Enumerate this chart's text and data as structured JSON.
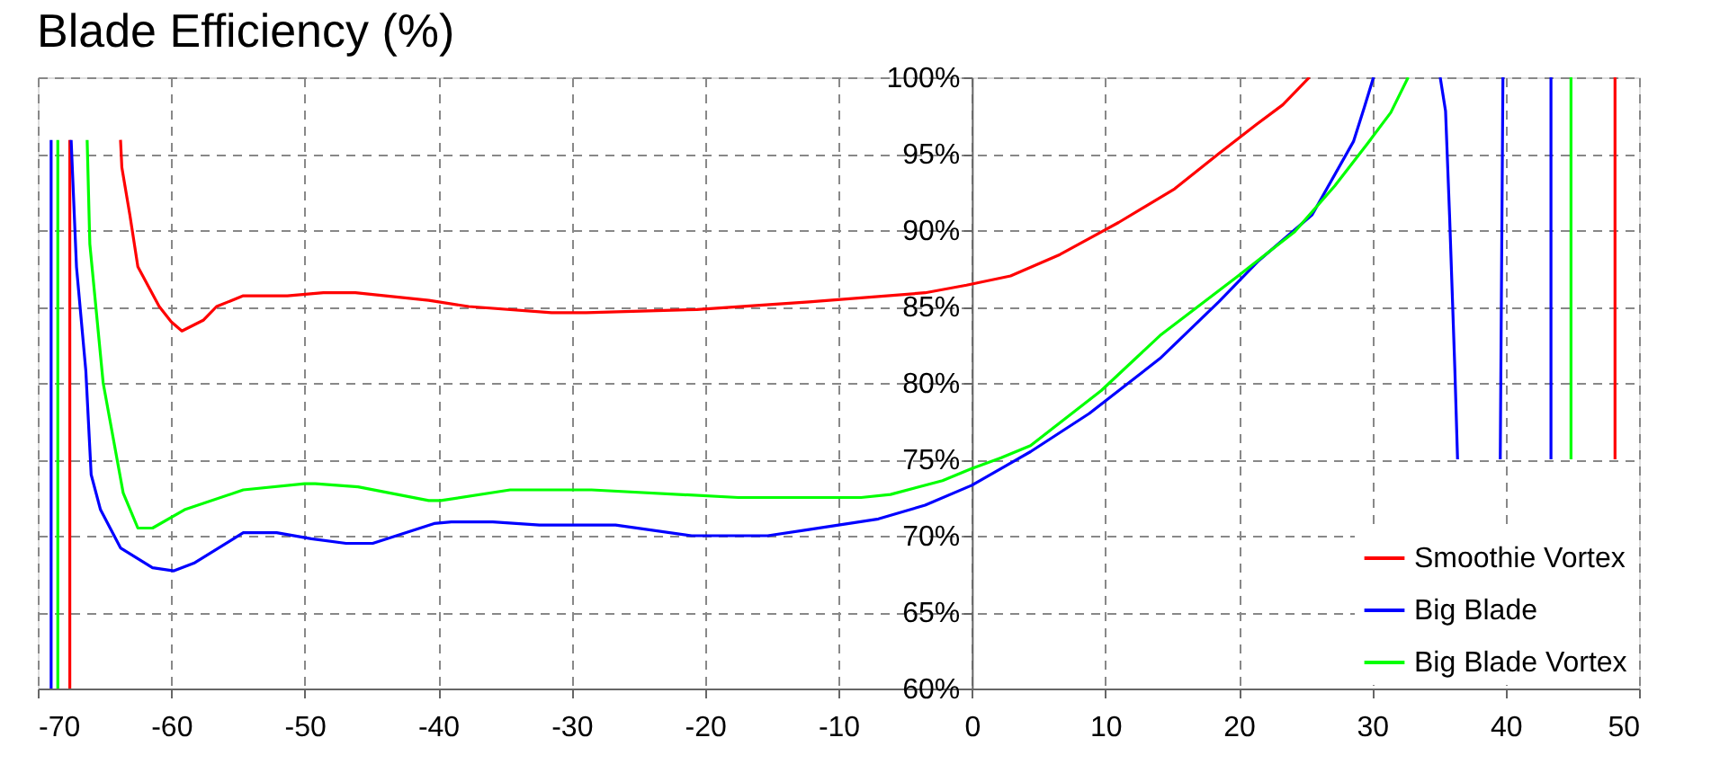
{
  "chart_data": {
    "type": "line",
    "title": "Blade Efficiency (%)",
    "xlim": [
      -70,
      50
    ],
    "xticks": [
      -70,
      -60,
      -50,
      -40,
      -30,
      -20,
      -10,
      0,
      10,
      20,
      30,
      40,
      50
    ],
    "ylim": [
      60,
      100
    ],
    "yticks": [
      {
        "value": 60,
        "label": "60%"
      },
      {
        "value": 65,
        "label": "65%"
      },
      {
        "value": 70,
        "label": "70%"
      },
      {
        "value": 75,
        "label": "75%"
      },
      {
        "value": 80,
        "label": "80%"
      },
      {
        "value": 85,
        "label": "85%"
      },
      {
        "value": 90,
        "label": "90%"
      },
      {
        "value": 95,
        "label": "95%"
      },
      {
        "value": 100,
        "label": "100%"
      }
    ],
    "grid": true,
    "legend": "bottom right",
    "line_style": "solid",
    "marker": "none",
    "series": [
      {
        "name": "Smoothie Vortex",
        "color": "#ff0000",
        "x": [
          -67.6,
          -67.6,
          -65,
          -63.8,
          -63.7,
          -63.1,
          -62.5,
          -60.9,
          -60.0,
          -59.2,
          -57.6,
          -56.6,
          -54.6,
          -51.3,
          -48.6,
          -46.2,
          -40.7,
          -37.7,
          -31.5,
          -28.9,
          -20.6,
          -12.2,
          -3.5,
          -0.4,
          2.9,
          6.6,
          11.0,
          15.2,
          18.5,
          21.3,
          23.3,
          25.3,
          40,
          48.2,
          48.2
        ],
        "values": [
          60,
          95.9,
          null,
          95.9,
          94.1,
          91.0,
          87.6,
          85.0,
          84.0,
          83.4,
          84.1,
          85.0,
          85.7,
          85.7,
          85.9,
          85.9,
          85.4,
          85.0,
          84.6,
          84.6,
          84.8,
          85.3,
          85.9,
          86.4,
          87.0,
          88.4,
          90.5,
          92.7,
          95.0,
          96.9,
          98.2,
          100,
          null,
          100,
          75
        ]
      },
      {
        "name": "Big Blade",
        "color": "#0000ff",
        "x": [
          -69.0,
          -69.0,
          -68,
          -67.5,
          -67.1,
          -66.4,
          -66.0,
          -65.3,
          -63.8,
          -61.4,
          -59.8,
          -58.3,
          -54.6,
          -52.1,
          -49.5,
          -46.9,
          -44.9,
          -40.3,
          -39.0,
          -35.9,
          -32.4,
          -26.7,
          -21.0,
          -15.3,
          -12.2,
          -7.0,
          -3.5,
          0,
          4.4,
          8.8,
          14.1,
          18.5,
          21.5,
          25.5,
          28.6,
          29.4,
          30.1,
          33,
          35.1,
          35.5,
          35.8,
          36.2,
          36.4,
          38,
          39.8,
          39.6,
          41,
          43.4,
          43.4
        ],
        "values": [
          60,
          95.9,
          null,
          95.9,
          87.6,
          80.8,
          74.0,
          71.7,
          69.2,
          67.9,
          67.7,
          68.2,
          70.2,
          70.2,
          69.8,
          69.5,
          69.5,
          70.8,
          70.9,
          70.9,
          70.7,
          70.7,
          70.0,
          70.0,
          70.4,
          71.1,
          72.0,
          73.3,
          75.5,
          78.0,
          81.6,
          85.3,
          88.0,
          91.0,
          95.8,
          98.0,
          100,
          null,
          100,
          97.8,
          91.0,
          80.8,
          75,
          null,
          100,
          75,
          null,
          100,
          75
        ]
      },
      {
        "name": "Big Blade Vortex",
        "color": "#00ff00",
        "x": [
          -68.5,
          -68.5,
          -67,
          -66.3,
          -66.1,
          -65.1,
          -63.6,
          -62.5,
          -61.4,
          -59.0,
          -54.6,
          -50.0,
          -49.2,
          -46.0,
          -40.7,
          -39.8,
          -34.6,
          -28.5,
          -17.5,
          -8.3,
          -6.1,
          -2.2,
          0,
          2.2,
          4.4,
          9.7,
          14.1,
          19.8,
          24.2,
          27.2,
          29.6,
          31.4,
          32.7,
          40,
          44.9,
          44.9
        ],
        "values": [
          60,
          95.9,
          null,
          95.9,
          89.1,
          80.0,
          72.8,
          70.5,
          70.5,
          71.7,
          73.0,
          73.4,
          73.4,
          73.2,
          72.3,
          72.3,
          73.0,
          73.0,
          72.5,
          72.5,
          72.7,
          73.6,
          74.4,
          75.1,
          75.9,
          79.5,
          83.1,
          86.9,
          89.9,
          92.9,
          95.6,
          97.7,
          100,
          null,
          100,
          75
        ]
      }
    ]
  }
}
